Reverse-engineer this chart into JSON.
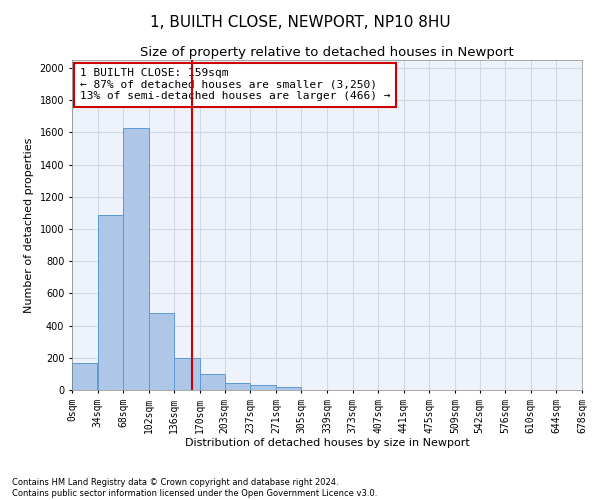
{
  "title": "1, BUILTH CLOSE, NEWPORT, NP10 8HU",
  "subtitle": "Size of property relative to detached houses in Newport",
  "xlabel": "Distribution of detached houses by size in Newport",
  "ylabel": "Number of detached properties",
  "footnote1": "Contains HM Land Registry data © Crown copyright and database right 2024.",
  "footnote2": "Contains public sector information licensed under the Open Government Licence v3.0.",
  "annotation_line1": "1 BUILTH CLOSE: 159sqm",
  "annotation_line2": "← 87% of detached houses are smaller (3,250)",
  "annotation_line3": "13% of semi-detached houses are larger (466) →",
  "property_size": 159,
  "bar_left_edges": [
    0,
    34,
    68,
    102,
    136,
    170,
    203,
    237,
    271,
    305,
    339,
    373,
    407,
    441,
    475,
    509,
    542,
    576,
    610,
    644
  ],
  "bar_widths": [
    34,
    34,
    34,
    34,
    34,
    33,
    34,
    34,
    34,
    34,
    34,
    34,
    34,
    34,
    34,
    33,
    34,
    34,
    34,
    34
  ],
  "bar_heights": [
    165,
    1085,
    1625,
    480,
    200,
    100,
    45,
    30,
    20,
    0,
    0,
    0,
    0,
    0,
    0,
    0,
    0,
    0,
    0,
    0
  ],
  "x_tick_labels": [
    "0sqm",
    "34sqm",
    "68sqm",
    "102sqm",
    "136sqm",
    "170sqm",
    "203sqm",
    "237sqm",
    "271sqm",
    "305sqm",
    "339sqm",
    "373sqm",
    "407sqm",
    "441sqm",
    "475sqm",
    "509sqm",
    "542sqm",
    "576sqm",
    "610sqm",
    "644sqm",
    "678sqm"
  ],
  "ylim": [
    0,
    2050
  ],
  "bar_color": "#aec6e8",
  "bar_edgecolor": "#5b9bd5",
  "vline_color": "#cc0000",
  "vline_x": 159,
  "annotation_box_color": "#cc0000",
  "grid_color": "#d0d8e8",
  "background_color": "#eef2fa",
  "title_fontsize": 11,
  "subtitle_fontsize": 9.5,
  "axis_label_fontsize": 8,
  "tick_fontsize": 7,
  "annotation_fontsize": 8,
  "footnote_fontsize": 6
}
